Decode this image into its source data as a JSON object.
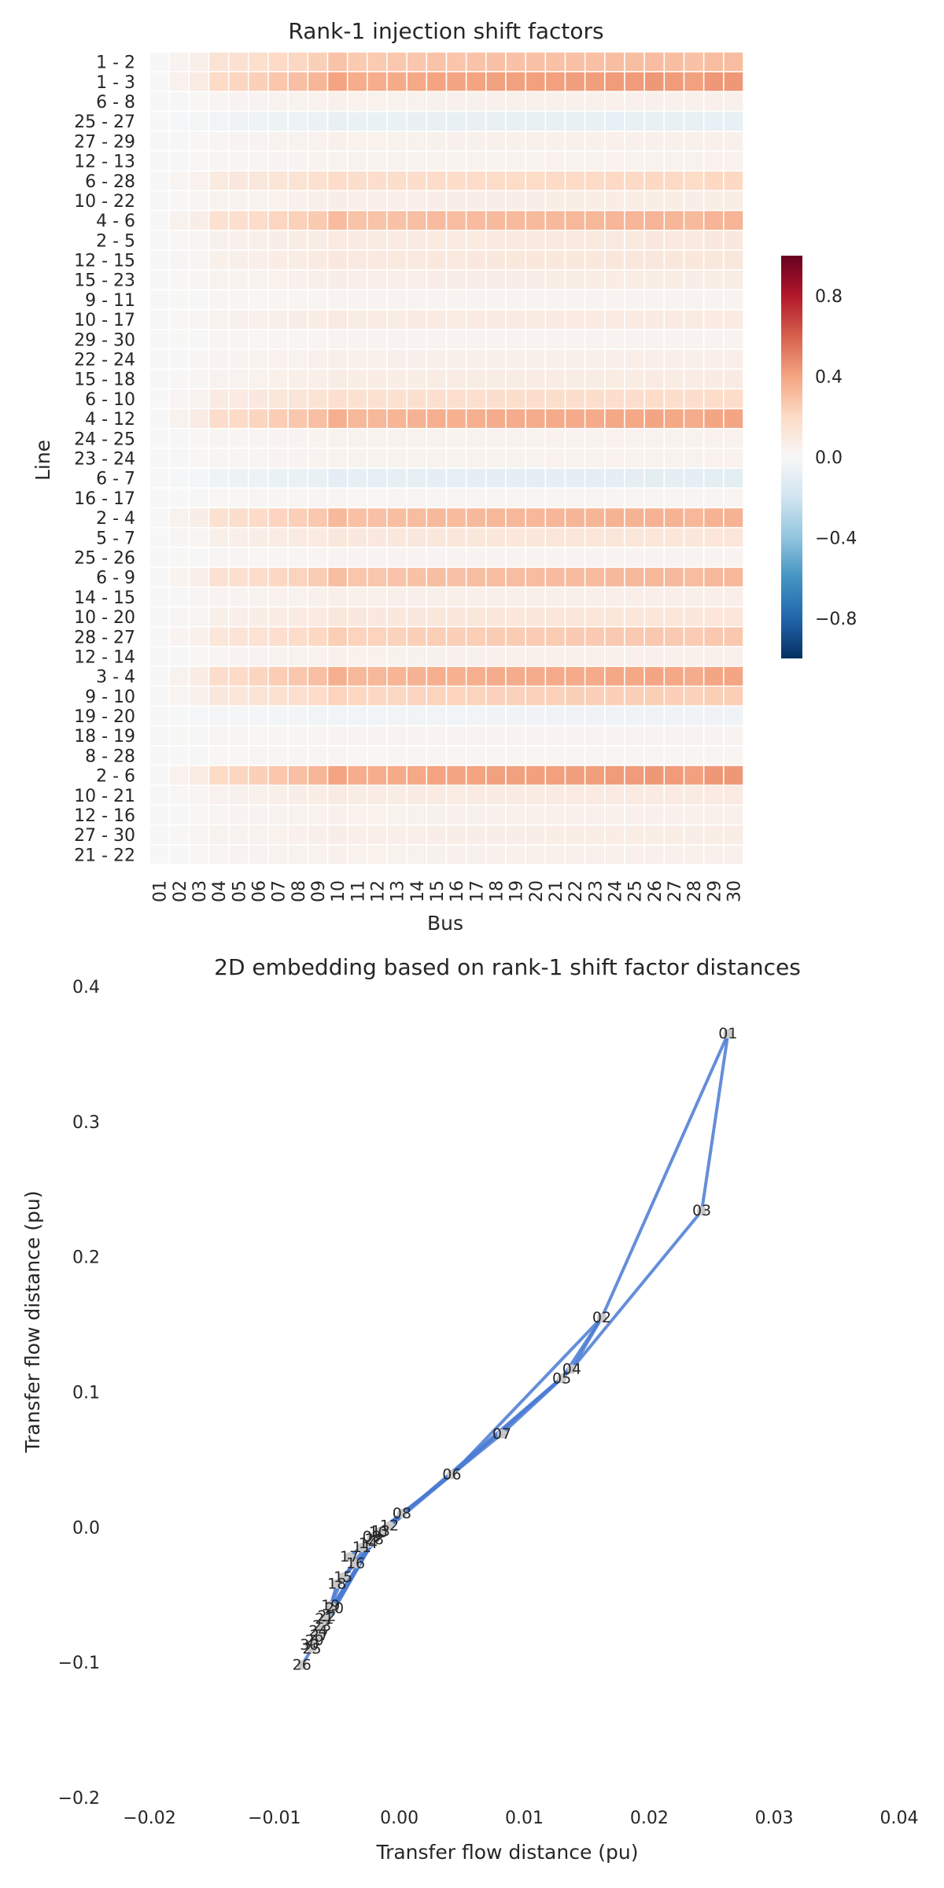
{
  "colors": {
    "cmap": [
      "#053061",
      "#2166ac",
      "#4393c3",
      "#92c5de",
      "#d1e5f0",
      "#f7f7f7",
      "#fddbc7",
      "#f4a582",
      "#d6604d",
      "#b2182b",
      "#67001f"
    ],
    "edge": "#4a7ad2",
    "node": "#c8c8c8",
    "grid": "#ffffff",
    "background": "#ffffff"
  },
  "chart_data": [
    {
      "type": "heatmap",
      "title": "Rank-1 injection shift factors",
      "xlabel": "Bus",
      "ylabel": "Line",
      "x": [
        "01",
        "02",
        "03",
        "04",
        "05",
        "06",
        "07",
        "08",
        "09",
        "10",
        "11",
        "12",
        "13",
        "14",
        "15",
        "16",
        "17",
        "18",
        "19",
        "20",
        "21",
        "22",
        "23",
        "24",
        "25",
        "26",
        "27",
        "28",
        "29",
        "30"
      ],
      "y": [
        "1 - 2",
        "1 - 3",
        "6 - 8",
        "25 - 27",
        "27 - 29",
        "12 - 13",
        "6 - 28",
        "10 - 22",
        "4 - 6",
        "2 - 5",
        "12 - 15",
        "15 - 23",
        "9 - 11",
        "10 - 17",
        "29 - 30",
        "22 - 24",
        "15 - 18",
        "6 - 10",
        "4 - 12",
        "24 - 25",
        "23 - 24",
        "6 - 7",
        "16 - 17",
        "2 - 4",
        "5 - 7",
        "25 - 26",
        "6 - 9",
        "14 - 15",
        "10 - 20",
        "28 - 27",
        "12 - 14",
        "3 - 4",
        "9 - 10",
        "19 - 20",
        "18 - 19",
        "8 - 28",
        "2 - 6",
        "10 - 21",
        "12 - 16",
        "27 - 30",
        "21 - 22"
      ],
      "row_strength": [
        0.3,
        0.42,
        0.05,
        -0.08,
        0.05,
        0.04,
        0.2,
        0.07,
        0.33,
        0.1,
        0.11,
        0.07,
        0.03,
        0.09,
        0.03,
        0.06,
        0.08,
        0.18,
        0.38,
        0.04,
        0.04,
        -0.1,
        0.02,
        0.34,
        0.12,
        0.03,
        0.32,
        0.06,
        0.12,
        0.26,
        0.05,
        0.38,
        0.24,
        -0.04,
        0.03,
        0.02,
        0.42,
        0.09,
        0.05,
        0.07,
        0.05
      ],
      "bus_weight": [
        0.0,
        0.1,
        0.2,
        0.48,
        0.52,
        0.58,
        0.66,
        0.72,
        0.8,
        0.96,
        0.88,
        0.88,
        0.9,
        0.92,
        0.96,
        0.94,
        0.96,
        0.98,
        0.98,
        0.98,
        0.99,
        1.0,
        1.0,
        1.02,
        1.02,
        1.04,
        1.02,
        0.98,
        1.04,
        1.04
      ],
      "colorbar": {
        "vmin": -1.0,
        "vmax": 1.0,
        "ticks": [
          -0.8,
          -0.4,
          0.0,
          0.4,
          0.8
        ],
        "tick_labels": [
          "−0.8",
          "−0.4",
          "0.0",
          "0.4",
          "0.8"
        ]
      },
      "cmap": "RdBu_r"
    },
    {
      "type": "scatter",
      "title": "2D embedding based on rank-1 shift factor distances",
      "xlabel": "Transfer flow distance (pu)",
      "ylabel": "Transfer flow distance (pu)",
      "xlim": [
        -0.02,
        0.04
      ],
      "ylim": [
        -0.2,
        0.4
      ],
      "xticks": [
        -0.02,
        -0.01,
        0.0,
        0.01,
        0.02,
        0.03,
        0.04
      ],
      "xtick_labels": [
        "−0.02",
        "−0.01",
        "0.00",
        "0.01",
        "0.02",
        "0.03",
        "0.04"
      ],
      "yticks": [
        -0.2,
        -0.1,
        0.0,
        0.1,
        0.2,
        0.3,
        0.4
      ],
      "ytick_labels": [
        "−0.2",
        "−0.1",
        "0.0",
        "0.1",
        "0.2",
        "0.3",
        "0.4"
      ],
      "grid": false,
      "nodes": [
        {
          "id": "01",
          "x": 0.0263,
          "y": 0.365
        },
        {
          "id": "02",
          "x": 0.0162,
          "y": 0.155
        },
        {
          "id": "03",
          "x": 0.0242,
          "y": 0.234
        },
        {
          "id": "04",
          "x": 0.0138,
          "y": 0.117
        },
        {
          "id": "05",
          "x": 0.013,
          "y": 0.11
        },
        {
          "id": "06",
          "x": 0.0042,
          "y": 0.039
        },
        {
          "id": "07",
          "x": 0.0082,
          "y": 0.069
        },
        {
          "id": "08",
          "x": 0.0002,
          "y": 0.01
        },
        {
          "id": "09",
          "x": -0.0022,
          "y": -0.007
        },
        {
          "id": "10",
          "x": -0.0017,
          "y": -0.004
        },
        {
          "id": "11",
          "x": -0.003,
          "y": -0.015
        },
        {
          "id": "12",
          "x": -0.0008,
          "y": 0.001
        },
        {
          "id": "13",
          "x": -0.0015,
          "y": -0.003
        },
        {
          "id": "14",
          "x": -0.0025,
          "y": -0.012
        },
        {
          "id": "15",
          "x": -0.0045,
          "y": -0.037
        },
        {
          "id": "16",
          "x": -0.0035,
          "y": -0.027
        },
        {
          "id": "17",
          "x": -0.004,
          "y": -0.022
        },
        {
          "id": "18",
          "x": -0.005,
          "y": -0.042
        },
        {
          "id": "19",
          "x": -0.0055,
          "y": -0.058
        },
        {
          "id": "20",
          "x": -0.0052,
          "y": -0.06
        },
        {
          "id": "21",
          "x": -0.006,
          "y": -0.068
        },
        {
          "id": "22",
          "x": -0.0058,
          "y": -0.066
        },
        {
          "id": "23",
          "x": -0.0062,
          "y": -0.073
        },
        {
          "id": "24",
          "x": -0.0065,
          "y": -0.077
        },
        {
          "id": "25",
          "x": -0.007,
          "y": -0.09
        },
        {
          "id": "26",
          "x": -0.0078,
          "y": -0.102
        },
        {
          "id": "27",
          "x": -0.0064,
          "y": -0.08
        },
        {
          "id": "28",
          "x": -0.002,
          "y": -0.009
        },
        {
          "id": "29",
          "x": -0.0068,
          "y": -0.084
        },
        {
          "id": "30",
          "x": -0.0072,
          "y": -0.087
        }
      ],
      "edges": [
        [
          "01",
          "02"
        ],
        [
          "01",
          "03"
        ],
        [
          "03",
          "04"
        ],
        [
          "02",
          "04"
        ],
        [
          "02",
          "05"
        ],
        [
          "02",
          "06"
        ],
        [
          "04",
          "06"
        ],
        [
          "05",
          "07"
        ],
        [
          "06",
          "07"
        ],
        [
          "06",
          "08"
        ],
        [
          "06",
          "09"
        ],
        [
          "06",
          "10"
        ],
        [
          "09",
          "11"
        ],
        [
          "09",
          "10"
        ],
        [
          "04",
          "12"
        ],
        [
          "12",
          "13"
        ],
        [
          "12",
          "14"
        ],
        [
          "12",
          "15"
        ],
        [
          "12",
          "16"
        ],
        [
          "14",
          "15"
        ],
        [
          "16",
          "17"
        ],
        [
          "15",
          "18"
        ],
        [
          "18",
          "19"
        ],
        [
          "19",
          "20"
        ],
        [
          "10",
          "20"
        ],
        [
          "10",
          "17"
        ],
        [
          "10",
          "21"
        ],
        [
          "10",
          "22"
        ],
        [
          "21",
          "22"
        ],
        [
          "15",
          "23"
        ],
        [
          "22",
          "24"
        ],
        [
          "23",
          "24"
        ],
        [
          "24",
          "25"
        ],
        [
          "25",
          "26"
        ],
        [
          "25",
          "27"
        ],
        [
          "28",
          "27"
        ],
        [
          "27",
          "29"
        ],
        [
          "27",
          "30"
        ],
        [
          "29",
          "30"
        ],
        [
          "08",
          "28"
        ],
        [
          "06",
          "28"
        ]
      ]
    }
  ]
}
